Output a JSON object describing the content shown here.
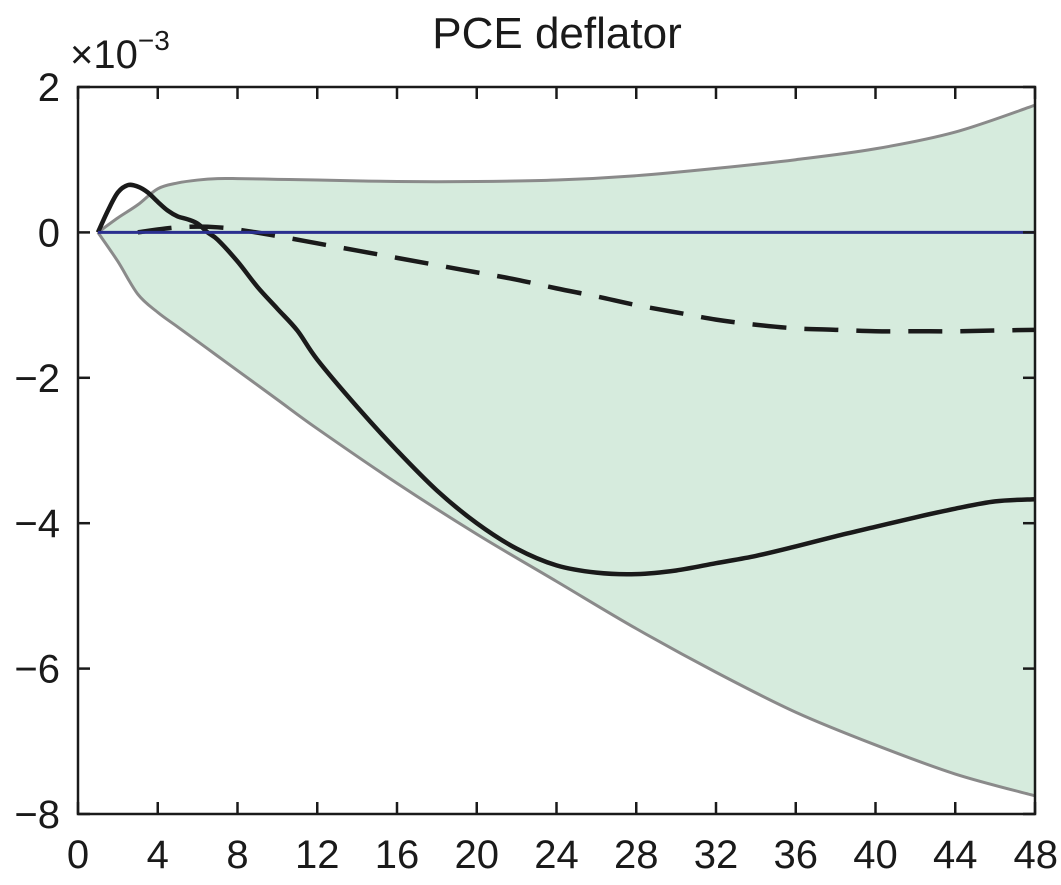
{
  "chart_data": {
    "type": "line",
    "title": "PCE deflator",
    "multiplier": {
      "base": "×10",
      "exponent": "−3"
    },
    "xlabel": "",
    "ylabel": "",
    "xlim": [
      0,
      48
    ],
    "ylim": [
      -8,
      2
    ],
    "x_ticks": [
      0,
      4,
      8,
      12,
      16,
      20,
      24,
      28,
      32,
      36,
      40,
      44,
      48
    ],
    "x_tick_labels": [
      "0",
      "4",
      "8",
      "12",
      "16",
      "20",
      "24",
      "28",
      "32",
      "36",
      "40",
      "44",
      "48"
    ],
    "y_ticks": [
      -8,
      -6,
      -4,
      -2,
      0,
      2
    ],
    "y_tick_labels": [
      "−8",
      "−6",
      "−4",
      "−2",
      "0",
      "2"
    ],
    "grid": false,
    "legend": "none",
    "colors": {
      "band_fill": "#d6ebdd",
      "band_edge": "#8a8a8a",
      "zero_line": "#2a2f8f",
      "solid_line": "#1a1a1a",
      "dashed_line": "#1a1a1a",
      "axes": "#1a1a1a"
    },
    "band": {
      "x": [
        1,
        2,
        3,
        4,
        5,
        6,
        7,
        8,
        10,
        12,
        16,
        20,
        24,
        28,
        32,
        36,
        40,
        44,
        48
      ],
      "upper": [
        0.0,
        0.2,
        0.38,
        0.6,
        0.68,
        0.72,
        0.74,
        0.74,
        0.73,
        0.72,
        0.7,
        0.7,
        0.72,
        0.78,
        0.88,
        1.0,
        1.15,
        1.38,
        1.75
      ],
      "lower": [
        0.0,
        -0.4,
        -0.85,
        -1.1,
        -1.3,
        -1.5,
        -1.7,
        -1.9,
        -2.3,
        -2.7,
        -3.45,
        -4.15,
        -4.8,
        -5.45,
        -6.05,
        -6.6,
        -7.05,
        -7.45,
        -7.75
      ]
    },
    "series": [
      {
        "style": "solid",
        "x": [
          1,
          1.5,
          2,
          2.5,
          3,
          3.5,
          4,
          4.5,
          5,
          5.5,
          6,
          6.5,
          7,
          8,
          9,
          10,
          11,
          12,
          14,
          16,
          18,
          20,
          22,
          24,
          26,
          28,
          30,
          32,
          34,
          36,
          38,
          40,
          42,
          44,
          46,
          48
        ],
        "y": [
          0.0,
          0.3,
          0.55,
          0.65,
          0.63,
          0.55,
          0.42,
          0.3,
          0.22,
          0.18,
          0.12,
          0.0,
          -0.1,
          -0.4,
          -0.75,
          -1.05,
          -1.35,
          -1.75,
          -2.4,
          -3.0,
          -3.55,
          -4.0,
          -4.35,
          -4.58,
          -4.68,
          -4.7,
          -4.65,
          -4.55,
          -4.45,
          -4.32,
          -4.18,
          -4.05,
          -3.92,
          -3.8,
          -3.7,
          -3.67
        ]
      },
      {
        "style": "dashed",
        "x": [
          3,
          4,
          5,
          6,
          7,
          8,
          10,
          12,
          14,
          16,
          18,
          20,
          22,
          24,
          26,
          28,
          30,
          32,
          34,
          36,
          38,
          40,
          42,
          44,
          46,
          48
        ],
        "y": [
          0.0,
          0.04,
          0.07,
          0.08,
          0.07,
          0.04,
          -0.05,
          -0.15,
          -0.25,
          -0.35,
          -0.45,
          -0.55,
          -0.65,
          -0.77,
          -0.88,
          -1.0,
          -1.1,
          -1.2,
          -1.27,
          -1.32,
          -1.34,
          -1.36,
          -1.36,
          -1.36,
          -1.35,
          -1.34
        ]
      },
      {
        "style": "zero",
        "x": [
          1,
          48
        ],
        "y": [
          0,
          0
        ]
      }
    ]
  }
}
